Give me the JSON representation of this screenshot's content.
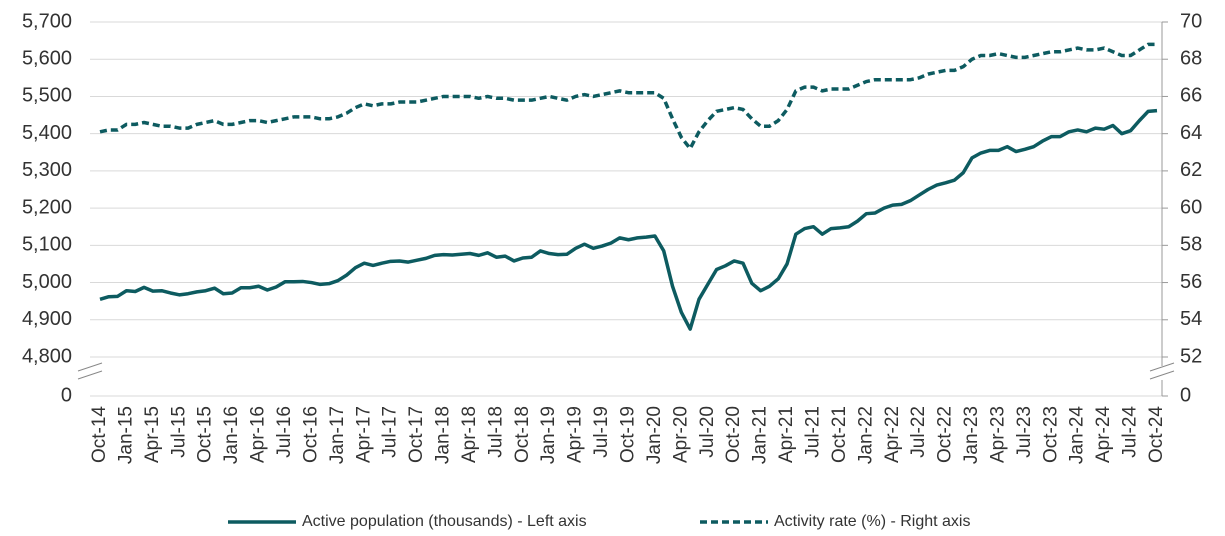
{
  "chart_data": {
    "type": "line",
    "categories": [
      "Oct-14",
      null,
      null,
      "Jan-15",
      null,
      null,
      "Apr-15",
      null,
      null,
      "Jul-15",
      null,
      null,
      "Oct-15",
      null,
      null,
      "Jan-16",
      null,
      null,
      "Apr-16",
      null,
      null,
      "Jul-16",
      null,
      null,
      "Oct-16",
      null,
      null,
      "Jan-17",
      null,
      null,
      "Apr-17",
      null,
      null,
      "Jul-17",
      null,
      null,
      "Oct-17",
      null,
      null,
      "Jan-18",
      null,
      null,
      "Apr-18",
      null,
      null,
      "Jul-18",
      null,
      null,
      "Oct-18",
      null,
      null,
      "Jan-19",
      null,
      null,
      "Apr-19",
      null,
      null,
      "Jul-19",
      null,
      null,
      "Oct-19",
      null,
      null,
      "Jan-20",
      null,
      null,
      "Apr-20",
      null,
      null,
      "Jul-20",
      null,
      null,
      "Oct-20",
      null,
      null,
      "Jan-21",
      null,
      null,
      "Apr-21",
      null,
      null,
      "Jul-21",
      null,
      null,
      "Oct-21",
      null,
      null,
      "Jan-22",
      null,
      null,
      "Apr-22",
      null,
      null,
      "Jul-22",
      null,
      null,
      "Oct-22",
      null,
      null,
      "Jan-23",
      null,
      null,
      "Apr-23",
      null,
      null,
      "Jul-23",
      null,
      null,
      "Oct-23",
      null,
      null,
      "Jan-24",
      null,
      null,
      "Apr-24",
      null,
      null,
      "Jul-24",
      null,
      null,
      "Oct-24"
    ],
    "series": [
      {
        "name": "Active population (thousands) - Left axis",
        "color": "#0d5b60",
        "dash": false,
        "axis": "y",
        "values": [
          4955,
          4962,
          4963,
          4978,
          4976,
          4987,
          4977,
          4978,
          4972,
          4967,
          4970,
          4975,
          4978,
          4985,
          4970,
          4972,
          4986,
          4986,
          4990,
          4980,
          4988,
          5002,
          5002,
          5003,
          5000,
          4995,
          4997,
          5005,
          5020,
          5040,
          5052,
          5046,
          5052,
          5057,
          5058,
          5055,
          5060,
          5065,
          5073,
          5075,
          5074,
          5076,
          5078,
          5073,
          5080,
          5068,
          5071,
          5058,
          5066,
          5068,
          5085,
          5078,
          5075,
          5076,
          5092,
          5103,
          5092,
          5098,
          5106,
          5120,
          5115,
          5120,
          5122,
          5125,
          5085,
          4990,
          4920,
          4875,
          4955,
          4995,
          5035,
          5045,
          5058,
          5052,
          4998,
          4978,
          4990,
          5010,
          5050,
          5130,
          5145,
          5150,
          5130,
          5145,
          5147,
          5150,
          5165,
          5185,
          5187,
          5200,
          5208,
          5210,
          5220,
          5235,
          5250,
          5262,
          5268,
          5275,
          5295,
          5335,
          5348,
          5355,
          5355,
          5365,
          5352,
          5358,
          5365,
          5380,
          5392,
          5392,
          5405,
          5410,
          5405,
          5415,
          5412,
          5422,
          5400,
          5408,
          5435,
          5460,
          5462
        ]
      },
      {
        "name": "Activity rate (%) - Right axis",
        "color": "#0d5b60",
        "dash": true,
        "axis": "y2",
        "values": [
          64.1,
          64.2,
          64.2,
          64.5,
          64.5,
          64.6,
          64.5,
          64.4,
          64.4,
          64.3,
          64.3,
          64.5,
          64.6,
          64.7,
          64.5,
          64.5,
          64.6,
          64.7,
          64.7,
          64.6,
          64.7,
          64.8,
          64.9,
          64.9,
          64.9,
          64.8,
          64.8,
          64.9,
          65.1,
          65.4,
          65.6,
          65.5,
          65.6,
          65.6,
          65.7,
          65.7,
          65.7,
          65.8,
          65.9,
          66.0,
          66.0,
          66.0,
          66.0,
          65.9,
          66.0,
          65.9,
          65.9,
          65.8,
          65.8,
          65.8,
          65.9,
          66.0,
          65.9,
          65.8,
          66.0,
          66.1,
          66.0,
          66.1,
          66.2,
          66.3,
          66.2,
          66.2,
          66.2,
          66.2,
          65.9,
          64.8,
          63.8,
          63.2,
          64.1,
          64.7,
          65.2,
          65.3,
          65.4,
          65.3,
          64.8,
          64.4,
          64.4,
          64.7,
          65.3,
          66.3,
          66.5,
          66.5,
          66.3,
          66.4,
          66.4,
          66.4,
          66.6,
          66.8,
          66.9,
          66.9,
          66.9,
          66.9,
          66.9,
          67.0,
          67.2,
          67.3,
          67.4,
          67.4,
          67.6,
          68.0,
          68.2,
          68.2,
          68.3,
          68.2,
          68.1,
          68.1,
          68.2,
          68.3,
          68.4,
          68.4,
          68.5,
          68.6,
          68.5,
          68.5,
          68.6,
          68.4,
          68.2,
          68.2,
          68.5,
          68.8,
          68.8
        ]
      }
    ],
    "ylim": [
      0,
      5700
    ],
    "yticks": [
      0,
      {
        "value": 4800,
        "label": "4,800"
      },
      {
        "value": 4900,
        "label": "4,900"
      },
      {
        "value": 5000,
        "label": "5,000"
      },
      {
        "value": 5100,
        "label": "5,100"
      },
      {
        "value": 5200,
        "label": "5,200"
      },
      {
        "value": 5300,
        "label": "5,300"
      },
      {
        "value": 5400,
        "label": "5,400"
      },
      {
        "value": 5500,
        "label": "5,500"
      },
      {
        "value": 5600,
        "label": "5,600"
      },
      {
        "value": 5700,
        "label": "5,700"
      }
    ],
    "y2lim": [
      0,
      70
    ],
    "y2ticks": [
      0,
      52,
      54,
      56,
      58,
      60,
      62,
      64,
      66,
      68,
      70
    ],
    "axis_break": true,
    "grid": true,
    "legend": "bottom"
  }
}
